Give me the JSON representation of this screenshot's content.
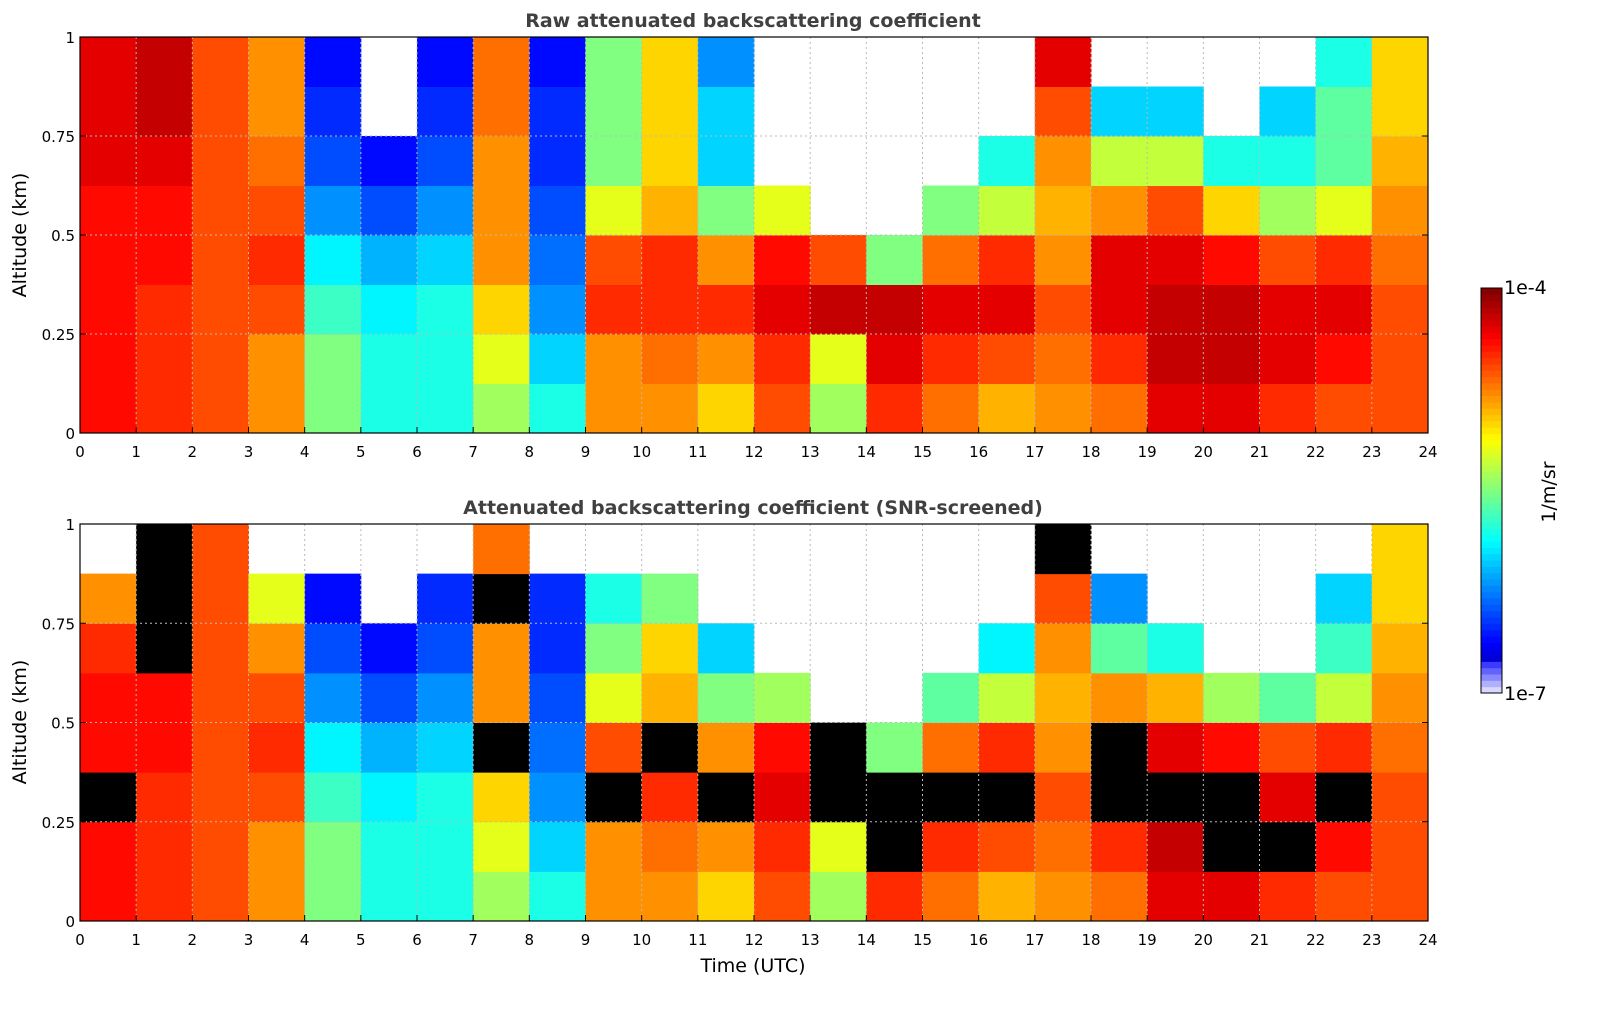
{
  "chart_data": [
    {
      "type": "heatmap",
      "title": "Raw attenuated backscattering coefficient",
      "xlabel": "",
      "ylabel": "Altitude (km)",
      "xlim": [
        0,
        24
      ],
      "ylim": [
        0,
        1
      ],
      "x_ticks": [
        "0",
        "1",
        "2",
        "3",
        "4",
        "5",
        "6",
        "7",
        "8",
        "9",
        "10",
        "11",
        "12",
        "13",
        "14",
        "15",
        "16",
        "17",
        "18",
        "19",
        "20",
        "21",
        "22",
        "23",
        "24"
      ],
      "y_ticks": [
        "0",
        "0.25",
        "0.5",
        "0.75",
        "1"
      ],
      "grid": true,
      "x_bin_hours": [
        0,
        1,
        2,
        3,
        4,
        5,
        6,
        7,
        8,
        9,
        10,
        11,
        12,
        13,
        14,
        15,
        16,
        17,
        18,
        19,
        20,
        21,
        22,
        23
      ],
      "altitude_bins_km": [
        0,
        0.125,
        0.25,
        0.375,
        0.5,
        0.625,
        0.75,
        0.875
      ],
      "log10_values": [
        [
          -4.4,
          -4.4,
          -4.4,
          -4.4,
          -4.4,
          -4.3,
          -4.3,
          -4.3
        ],
        [
          -4.5,
          -4.5,
          -4.5,
          -4.4,
          -4.4,
          -4.3,
          -4.2,
          -4.2
        ],
        [
          -4.6,
          -4.6,
          -4.6,
          -4.6,
          -4.6,
          -4.6,
          -4.6,
          -4.6
        ],
        [
          -4.8,
          -4.8,
          -4.6,
          -4.5,
          -4.6,
          -4.7,
          -4.8,
          -4.8
        ],
        [
          -5.5,
          -5.5,
          -5.7,
          -5.9,
          -6.2,
          -6.4,
          -6.5,
          -6.6
        ],
        [
          -5.8,
          -5.8,
          -5.9,
          -6.1,
          -6.4,
          -6.6,
          null,
          null
        ],
        [
          -5.8,
          -5.8,
          -5.8,
          -6.0,
          -6.2,
          -6.4,
          -6.5,
          -6.6
        ],
        [
          -5.4,
          -5.2,
          -5.0,
          -4.8,
          -4.8,
          -4.8,
          -4.7,
          -4.7
        ],
        [
          -5.8,
          -6.0,
          -6.2,
          -6.3,
          -6.4,
          -6.5,
          -6.5,
          -6.6
        ],
        [
          -4.8,
          -4.8,
          -4.5,
          -4.6,
          -5.2,
          -5.5,
          -5.5,
          -5.5
        ],
        [
          -4.8,
          -4.7,
          -4.5,
          -4.5,
          -4.9,
          -5.0,
          -5.0,
          -5.0
        ],
        [
          -5.0,
          -4.8,
          -4.5,
          -4.8,
          -5.5,
          -6.0,
          -6.0,
          -6.2
        ],
        [
          -4.6,
          -4.5,
          -4.3,
          -4.4,
          -5.2,
          null,
          null,
          null
        ],
        [
          -5.4,
          -5.2,
          -4.2,
          -4.6,
          null,
          null,
          null,
          null
        ],
        [
          -4.5,
          -4.3,
          -4.2,
          -5.5,
          null,
          null,
          null,
          null
        ],
        [
          -4.7,
          -4.5,
          -4.3,
          -4.7,
          -5.5,
          null,
          null,
          null
        ],
        [
          -4.9,
          -4.6,
          -4.3,
          -4.5,
          -5.3,
          -5.8,
          null,
          null
        ],
        [
          -4.8,
          -4.7,
          -4.6,
          -4.8,
          -4.9,
          -4.8,
          -4.6,
          -4.3
        ],
        [
          -4.7,
          -4.5,
          -4.3,
          -4.3,
          -4.8,
          -5.3,
          -6.0,
          null
        ],
        [
          -4.3,
          -4.2,
          -4.2,
          -4.3,
          -4.6,
          -5.3,
          -6.0,
          null
        ],
        [
          -4.3,
          -4.2,
          -4.2,
          -4.4,
          -5.0,
          -5.8,
          null,
          null
        ],
        [
          -4.5,
          -4.3,
          -4.3,
          -4.6,
          -5.4,
          -5.8,
          -6.0,
          null
        ],
        [
          -4.6,
          -4.4,
          -4.3,
          -4.5,
          -5.2,
          -5.6,
          -5.6,
          -5.8
        ],
        [
          -4.6,
          -4.6,
          -4.6,
          -4.7,
          -4.8,
          -4.9,
          -5.0,
          -5.0
        ]
      ]
    },
    {
      "type": "heatmap",
      "title": "Attenuated backscattering coefficient (SNR-screened)",
      "xlabel": "Time (UTC)",
      "ylabel": "Altitude (km)",
      "xlim": [
        0,
        24
      ],
      "ylim": [
        0,
        1
      ],
      "x_ticks": [
        "0",
        "1",
        "2",
        "3",
        "4",
        "5",
        "6",
        "7",
        "8",
        "9",
        "10",
        "11",
        "12",
        "13",
        "14",
        "15",
        "16",
        "17",
        "18",
        "19",
        "20",
        "21",
        "22",
        "23",
        "24"
      ],
      "y_ticks": [
        "0",
        "0.25",
        "0.5",
        "0.75",
        "1"
      ],
      "grid": true,
      "black_means": "saturated",
      "x_bin_hours": [
        0,
        1,
        2,
        3,
        4,
        5,
        6,
        7,
        8,
        9,
        10,
        11,
        12,
        13,
        14,
        15,
        16,
        17,
        18,
        19,
        20,
        21,
        22,
        23
      ],
      "altitude_bins_km": [
        0,
        0.125,
        0.25,
        0.375,
        0.5,
        0.625,
        0.75,
        0.875
      ],
      "log10_values": [
        [
          -4.4,
          -4.4,
          "sat",
          -4.4,
          -4.4,
          -4.5,
          -4.8,
          null
        ],
        [
          -4.5,
          -4.5,
          -4.5,
          -4.4,
          -4.4,
          "sat",
          "sat",
          "sat"
        ],
        [
          -4.6,
          -4.6,
          -4.6,
          -4.6,
          -4.6,
          -4.6,
          -4.6,
          -4.6
        ],
        [
          -4.8,
          -4.8,
          -4.6,
          -4.5,
          -4.6,
          -4.8,
          -5.2,
          null
        ],
        [
          -5.5,
          -5.5,
          -5.7,
          -5.9,
          -6.2,
          -6.4,
          -6.6,
          null
        ],
        [
          -5.8,
          -5.8,
          -5.9,
          -6.1,
          -6.4,
          -6.6,
          null,
          null
        ],
        [
          -5.8,
          -5.8,
          -5.8,
          -6.0,
          -6.2,
          -6.4,
          -6.5,
          null
        ],
        [
          -5.4,
          -5.2,
          -5.0,
          "sat",
          -4.8,
          -4.8,
          "sat",
          -4.7
        ],
        [
          -5.8,
          -6.0,
          -6.2,
          -6.3,
          -6.4,
          -6.5,
          -6.5,
          null
        ],
        [
          -4.8,
          -4.8,
          "sat",
          -4.6,
          -5.2,
          -5.5,
          -5.8,
          null
        ],
        [
          -4.8,
          -4.7,
          -4.5,
          "sat",
          -4.9,
          -5.0,
          -5.5,
          null
        ],
        [
          -5.0,
          -4.8,
          "sat",
          -4.8,
          -5.5,
          -6.0,
          null,
          null
        ],
        [
          -4.6,
          -4.5,
          -4.3,
          -4.4,
          -5.4,
          null,
          null,
          null
        ],
        [
          -5.4,
          -5.2,
          "sat",
          "sat",
          null,
          null,
          null,
          null
        ],
        [
          -4.5,
          "sat",
          "sat",
          -5.5,
          null,
          null,
          null,
          null
        ],
        [
          -4.7,
          -4.5,
          "sat",
          -4.7,
          -5.6,
          null,
          null,
          null
        ],
        [
          -4.9,
          -4.6,
          "sat",
          -4.5,
          -5.3,
          -5.9,
          null,
          null
        ],
        [
          -4.8,
          -4.7,
          -4.6,
          -4.8,
          -4.9,
          -4.8,
          -4.6,
          "sat"
        ],
        [
          -4.7,
          -4.5,
          "sat",
          "sat",
          -4.8,
          -5.6,
          -6.2,
          null
        ],
        [
          -4.3,
          -4.2,
          "sat",
          -4.3,
          -4.9,
          -5.8,
          null,
          null
        ],
        [
          -4.3,
          "sat",
          "sat",
          -4.4,
          -5.4,
          null,
          null,
          null
        ],
        [
          -4.5,
          "sat",
          -4.3,
          -4.6,
          -5.6,
          null,
          null,
          null
        ],
        [
          -4.6,
          -4.4,
          "sat",
          -4.5,
          -5.3,
          -5.7,
          -6.0,
          null
        ],
        [
          -4.6,
          -4.6,
          -4.6,
          -4.7,
          -4.8,
          -4.9,
          -5.0,
          -5.0
        ]
      ]
    }
  ],
  "colorbar": {
    "label": "1/m/sr",
    "max_label": "1e-4",
    "min_label": "1e-7",
    "log10_range": [
      -7,
      -4
    ],
    "colormap": "jet"
  }
}
